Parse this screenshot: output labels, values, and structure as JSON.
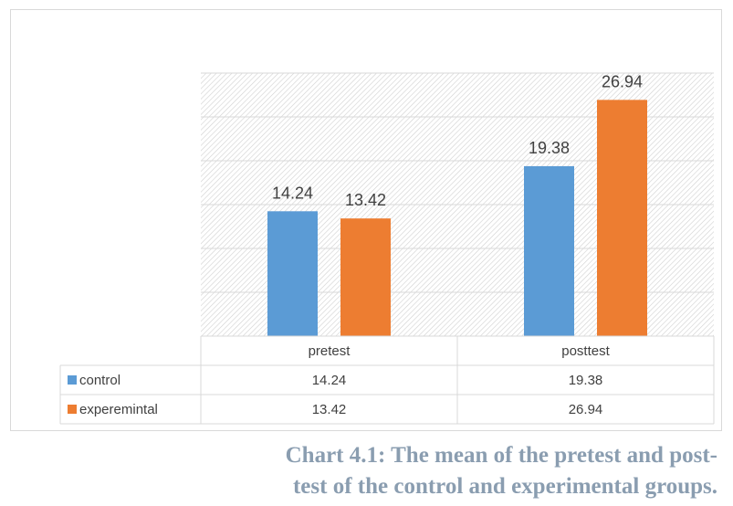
{
  "chart_data": {
    "type": "bar",
    "categories": [
      "pretest",
      "posttest"
    ],
    "series": [
      {
        "name": "control",
        "values": [
          14.24,
          19.38
        ],
        "color": "#5b9bd5"
      },
      {
        "name": "experemintal",
        "values": [
          13.42,
          26.94
        ],
        "color": "#ed7d31"
      }
    ],
    "data_labels": true,
    "ylim": [
      0,
      30
    ],
    "grid": true,
    "legend": "data-table",
    "data_table": true
  },
  "caption": {
    "line1": "Chart 4.1: The mean of the pretest and post-",
    "line2": "test of the control and experimental groups."
  },
  "colors": {
    "control": "#5b9bd5",
    "experimental": "#ed7d31",
    "grid": "#d9d9d9",
    "caption": "#8a9db0"
  }
}
